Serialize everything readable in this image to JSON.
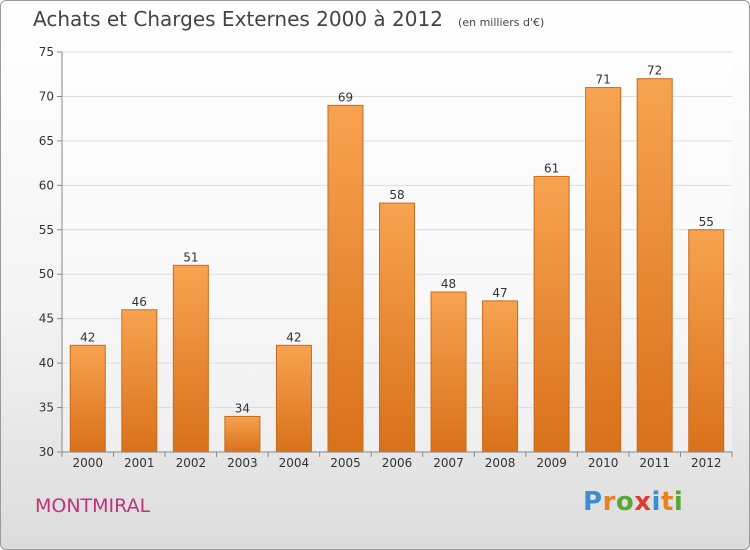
{
  "header": {
    "title": "Achats et Charges Externes 2000 à 2012",
    "unit": "(en milliers d'€)"
  },
  "footer": {
    "place": "MONTMIRAL",
    "logo": {
      "letters": [
        "P",
        "r",
        "o",
        "x",
        "i",
        "t",
        "i"
      ],
      "colors": [
        "#3b8fd1",
        "#e8821e",
        "#5aa832",
        "#e03c2e",
        "#3b8fd1",
        "#e8821e",
        "#5aa832"
      ]
    }
  },
  "colors": {
    "bar_top": "#f7a34f",
    "bar_bottom": "#d9711b",
    "bar_stroke": "#c96a1e",
    "grid": "#dddddd",
    "axis_text": "#333333"
  },
  "chart_data": {
    "type": "bar",
    "categories": [
      "2000",
      "2001",
      "2002",
      "2003",
      "2004",
      "2005",
      "2006",
      "2007",
      "2008",
      "2009",
      "2010",
      "2011",
      "2012"
    ],
    "values": [
      42,
      46,
      51,
      34,
      42,
      69,
      58,
      48,
      47,
      61,
      71,
      72,
      55
    ],
    "ylim": [
      30,
      75
    ],
    "yticks": [
      30,
      35,
      40,
      45,
      50,
      55,
      60,
      65,
      70,
      75
    ],
    "grid": true,
    "data_labels": true
  }
}
